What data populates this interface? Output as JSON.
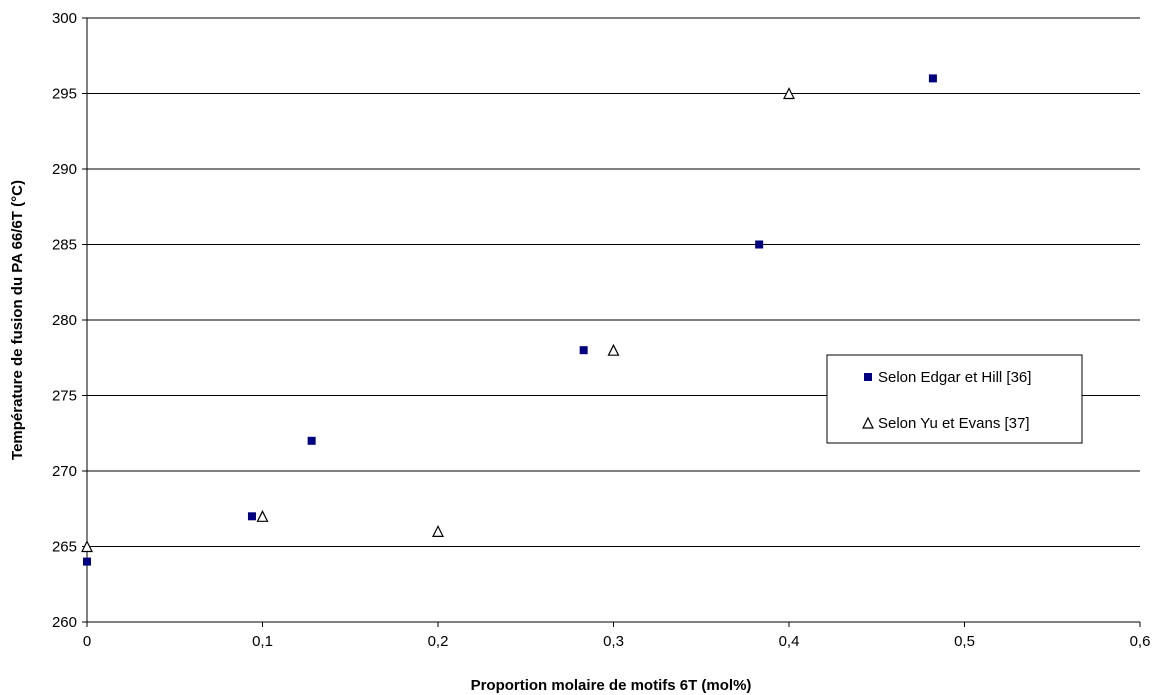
{
  "chart_data": {
    "type": "scatter",
    "title": "",
    "xlabel": "Proportion molaire de motifs 6T (mol%)",
    "ylabel": "Température de fusion du PA 66/6T (°C)",
    "xlim": [
      0,
      0.6
    ],
    "ylim": [
      260,
      300
    ],
    "x_ticks": [
      "0",
      "0,1",
      "0,2",
      "0,3",
      "0,4",
      "0,5",
      "0,6"
    ],
    "y_ticks": [
      "260",
      "265",
      "270",
      "275",
      "280",
      "285",
      "290",
      "295",
      "300"
    ],
    "grid": "horizontal",
    "legend_position": "right",
    "series": [
      {
        "name": "Selon Edgar et Hill [36]",
        "marker": "square",
        "color": "#000080",
        "points": [
          {
            "x": 0,
            "y": 264
          },
          {
            "x": 0.094,
            "y": 267
          },
          {
            "x": 0.128,
            "y": 272
          },
          {
            "x": 0.283,
            "y": 278
          },
          {
            "x": 0.383,
            "y": 285
          },
          {
            "x": 0.482,
            "y": 296
          }
        ]
      },
      {
        "name": "Selon Yu et Evans [37]",
        "marker": "triangle-open",
        "color": "#000000",
        "points": [
          {
            "x": 0,
            "y": 265
          },
          {
            "x": 0.1,
            "y": 267
          },
          {
            "x": 0.2,
            "y": 266
          },
          {
            "x": 0.3,
            "y": 278
          },
          {
            "x": 0.4,
            "y": 295
          }
        ]
      }
    ]
  }
}
